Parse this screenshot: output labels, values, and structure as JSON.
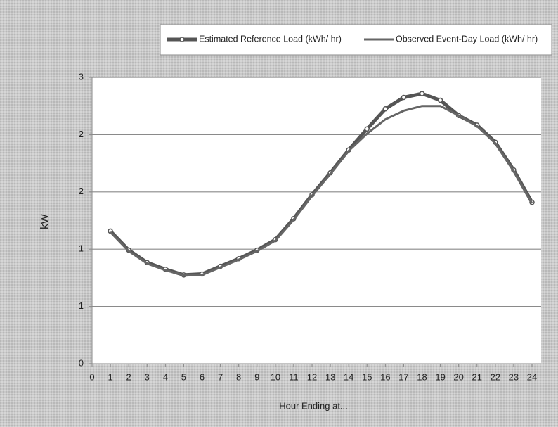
{
  "chart_data": {
    "type": "line",
    "x": [
      1,
      2,
      3,
      4,
      5,
      6,
      7,
      8,
      9,
      10,
      11,
      12,
      13,
      14,
      15,
      16,
      17,
      18,
      19,
      20,
      21,
      22,
      23,
      24
    ],
    "series": [
      {
        "name": "Estimated Reference Load (kWh/ hr)",
        "color": "#555555",
        "marker": true,
        "values": [
          1.39,
          1.19,
          1.06,
          0.99,
          0.93,
          0.94,
          1.02,
          1.1,
          1.19,
          1.3,
          1.52,
          1.77,
          2.0,
          2.24,
          2.46,
          2.67,
          2.79,
          2.83,
          2.76,
          2.6,
          2.5,
          2.32,
          2.03,
          1.69
        ]
      },
      {
        "name": "Observed Event-Day Load (kWh/ hr)",
        "color": "#666666",
        "marker": false,
        "values": [
          1.38,
          1.18,
          1.05,
          0.98,
          0.93,
          0.93,
          1.01,
          1.09,
          1.18,
          1.29,
          1.51,
          1.76,
          1.99,
          2.23,
          2.41,
          2.56,
          2.65,
          2.7,
          2.7,
          2.6,
          2.49,
          2.31,
          2.02,
          1.68
        ]
      }
    ],
    "xlim": [
      0,
      24
    ],
    "xticks": [
      0,
      1,
      2,
      3,
      4,
      5,
      6,
      7,
      8,
      9,
      10,
      11,
      12,
      13,
      14,
      15,
      16,
      17,
      18,
      19,
      20,
      21,
      22,
      23,
      24
    ],
    "ylim": [
      0,
      3
    ],
    "yticks": [
      0,
      {
        "value": 0.6,
        "label": "1"
      },
      {
        "value": 1.2,
        "label": "1"
      },
      {
        "value": 1.8,
        "label": "2"
      },
      {
        "value": 2.4,
        "label": "2"
      },
      3
    ],
    "grid": true,
    "xlabel": "Hour Ending at...",
    "ylabel": "kW",
    "legend": "top"
  }
}
